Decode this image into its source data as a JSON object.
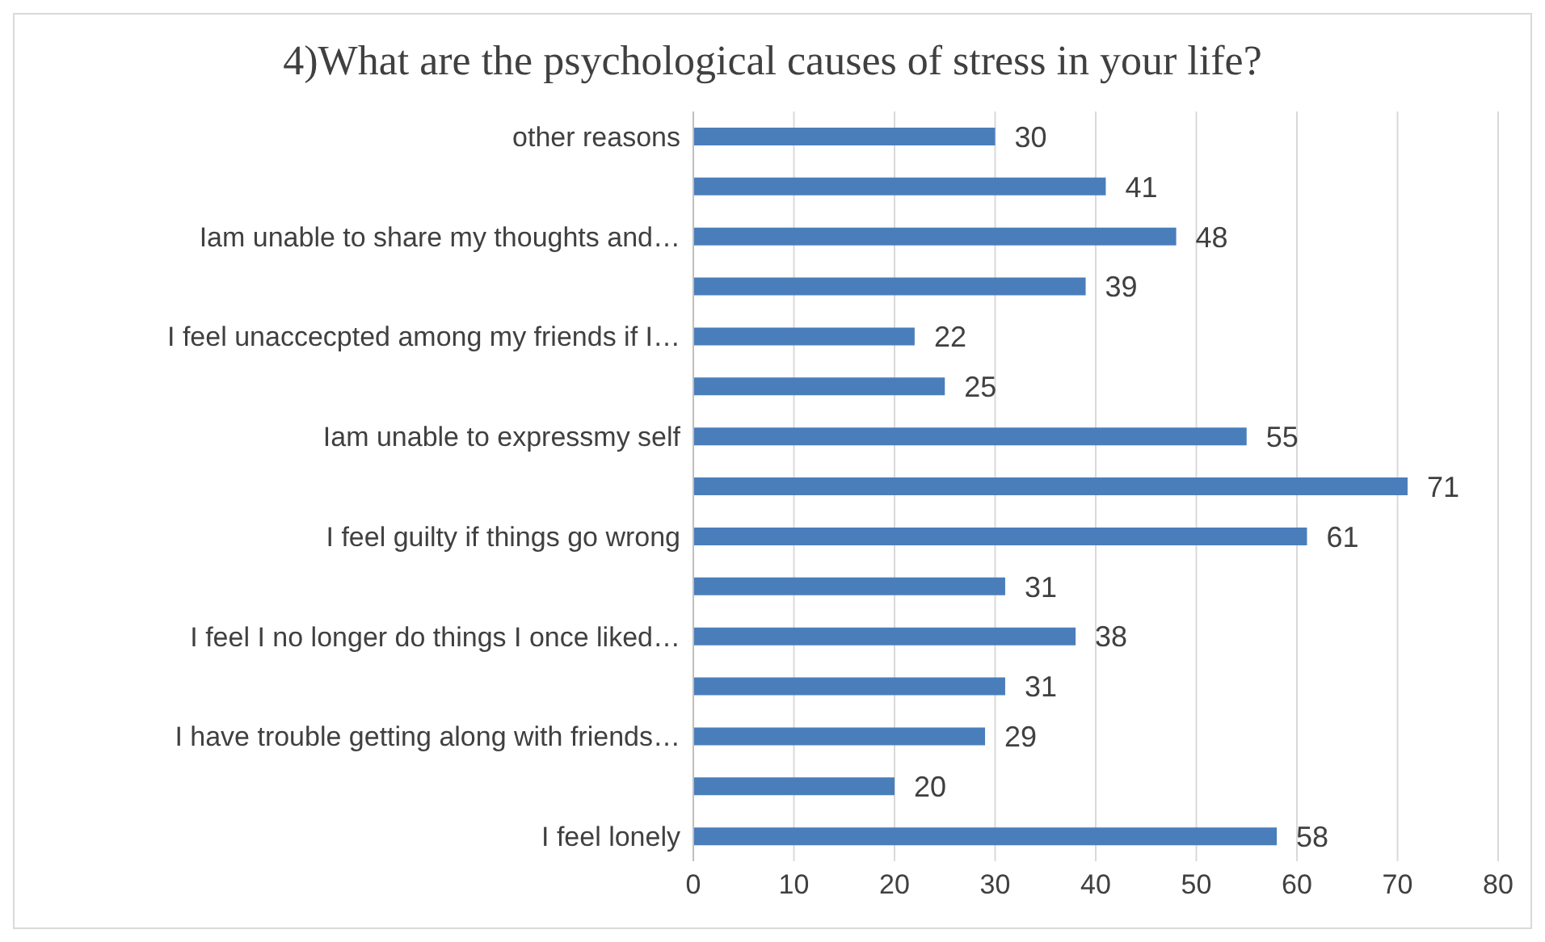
{
  "chart_data": {
    "type": "bar",
    "orientation": "horizontal",
    "title": "4)What are the psychological causes of stress in your life?",
    "categories": [
      "other reasons",
      null,
      "Iam unable to share my thoughts and…",
      null,
      "I feel unaccecpted among my friends if I…",
      null,
      "Iam unable to expressmy self",
      null,
      "I feel guilty if things go wrong",
      null,
      "I feel I no longer do things I once liked…",
      null,
      "I have trouble getting along with friends…",
      null,
      "I feel lonely"
    ],
    "values": [
      30,
      41,
      48,
      39,
      22,
      25,
      55,
      71,
      61,
      31,
      38,
      31,
      29,
      20,
      58
    ],
    "color": "#4a7ebb",
    "xlim": [
      0,
      80
    ],
    "xticks": [
      0,
      10,
      20,
      30,
      40,
      50,
      60,
      70,
      80
    ],
    "grid": "x",
    "data_labels": true
  }
}
